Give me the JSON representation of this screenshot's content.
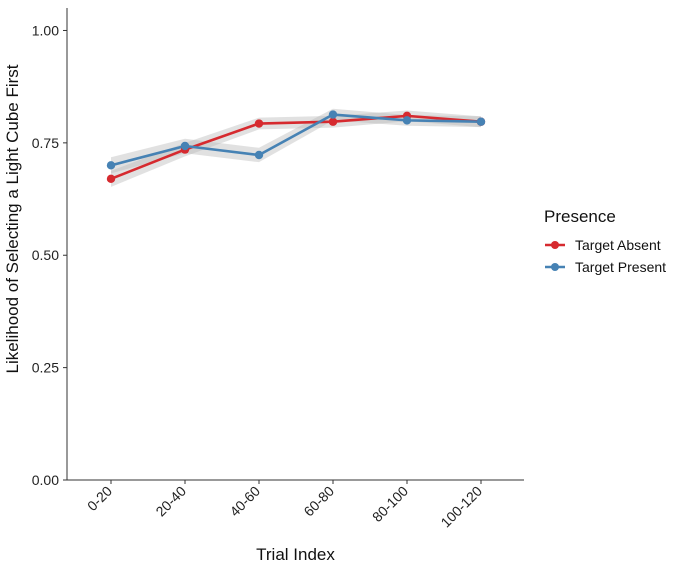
{
  "chart_data": {
    "type": "line",
    "categories": [
      "0-20",
      "20-40",
      "40-60",
      "60-80",
      "80-100",
      "100-120"
    ],
    "xlabel": "Trial Index",
    "ylabel": "Likelihood of Selecting a Light Cube First",
    "ylim": [
      0,
      1.05
    ],
    "yticks": [
      0.0,
      0.25,
      0.5,
      0.75,
      1.0
    ],
    "ytick_labels": [
      "0.00",
      "0.25",
      "0.50",
      "0.75",
      "1.00"
    ],
    "grid": false,
    "legend": {
      "title": "Presence",
      "placement": "right"
    },
    "series": [
      {
        "name": "Target Absent",
        "color": "#d62a2f",
        "values": [
          0.67,
          0.735,
          0.793,
          0.797,
          0.81,
          0.797
        ],
        "ci_half": [
          0.018,
          0.015,
          0.013,
          0.013,
          0.012,
          0.012
        ]
      },
      {
        "name": "Target Present",
        "color": "#4682b4",
        "values": [
          0.7,
          0.743,
          0.723,
          0.813,
          0.8,
          0.797
        ],
        "ci_half": [
          0.018,
          0.016,
          0.016,
          0.013,
          0.012,
          0.012
        ]
      }
    ]
  }
}
